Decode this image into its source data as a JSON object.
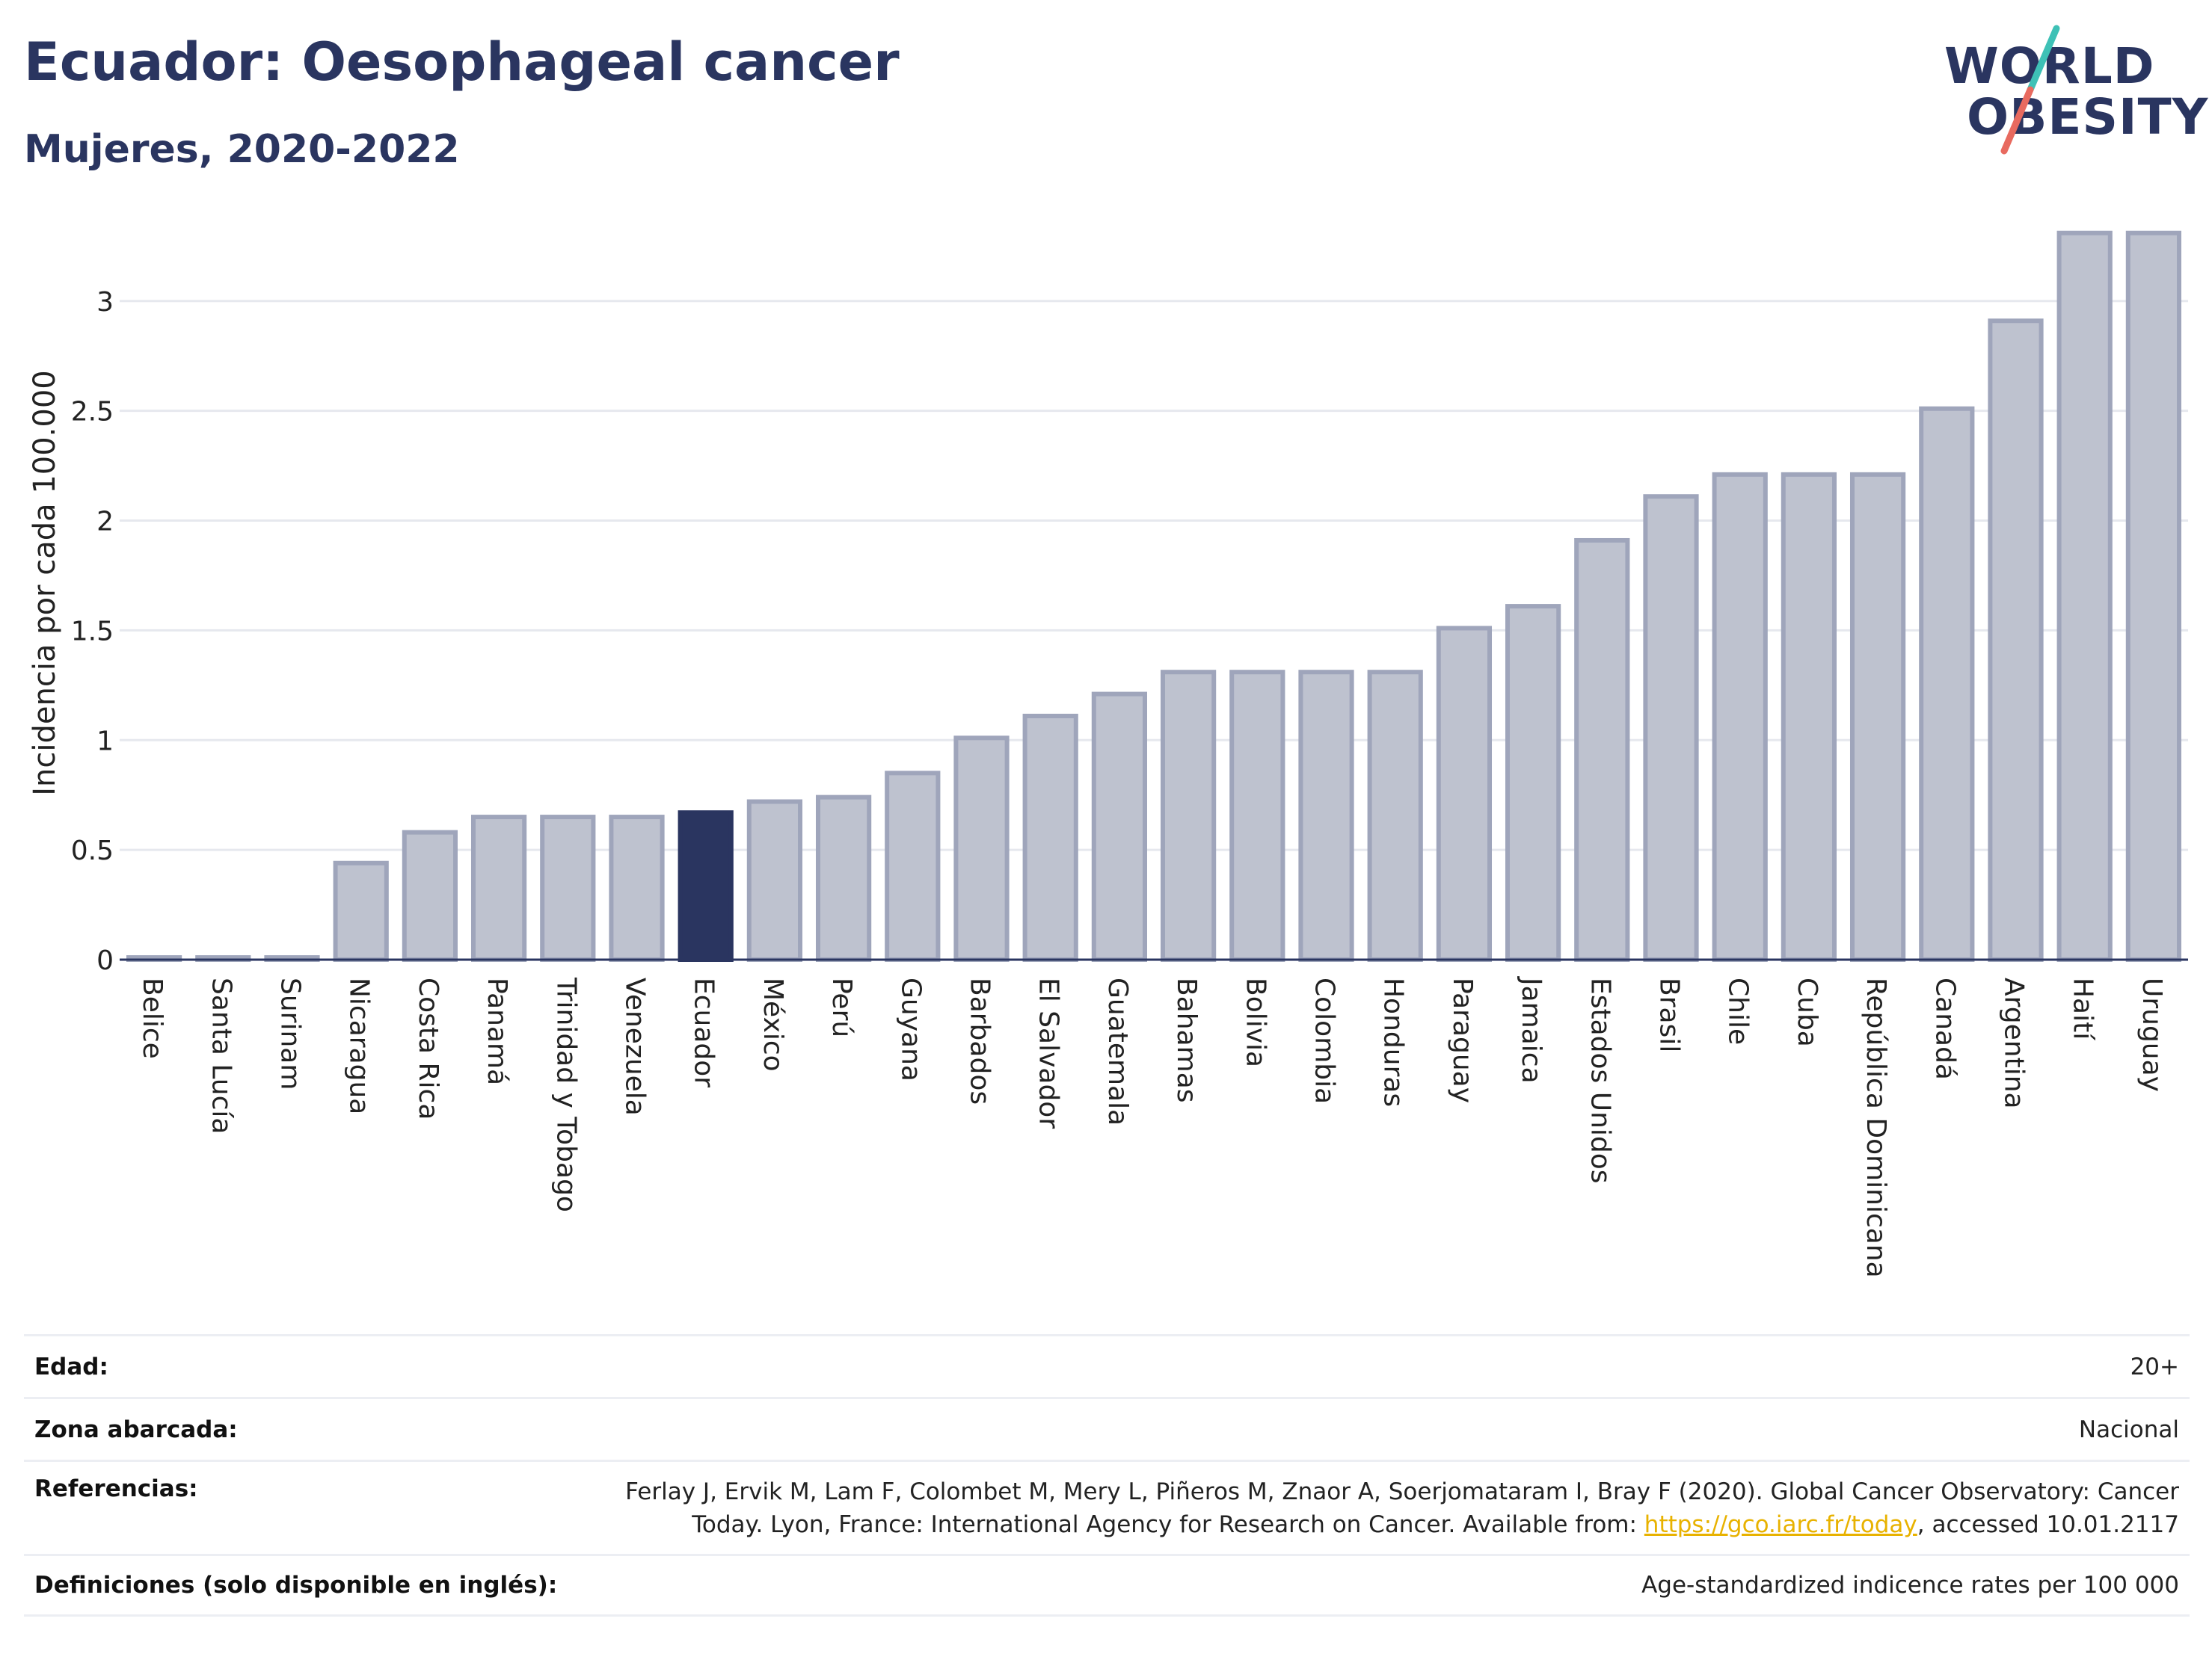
{
  "title": "Ecuador: Oesophageal cancer",
  "subtitle": "Mujeres, 2020-2022",
  "logo": {
    "line1": "WORLD",
    "line2": "OBESITY",
    "colors": {
      "text": "#2a3560",
      "slash_teal": "#3ec1b6",
      "slash_red": "#e86a5f"
    }
  },
  "chart_data": {
    "type": "bar",
    "title": "Ecuador: Oesophageal cancer",
    "subtitle": "Mujeres, 2020-2022",
    "ylabel": "Incidencia por cada 100.000",
    "xlabel": "",
    "ylim": [
      0,
      3.35
    ],
    "yticks": [
      0,
      0.5,
      1,
      1.5,
      2,
      2.5,
      3
    ],
    "ytick_labels": [
      "0",
      "0.5",
      "1",
      "1.5",
      "2",
      "2.5",
      "3"
    ],
    "grid": true,
    "highlight": "Ecuador",
    "colors": {
      "bar": "#bec2cf",
      "bar_edge": "#9fa5bb",
      "highlight": "#2a3560"
    },
    "categories": [
      "Belice",
      "Santa Lucía",
      "Surinam",
      "Nicaragua",
      "Costa Rica",
      "Panamá",
      "Trinidad y Tobago",
      "Venezuela",
      "Ecuador",
      "México",
      "Perú",
      "Guyana",
      "Barbados",
      "El Salvador",
      "Guatemala",
      "Bahamas",
      "Bolivia",
      "Colombia",
      "Honduras",
      "Paraguay",
      "Jamaica",
      "Estados Unidos",
      "Brasil",
      "Chile",
      "Cuba",
      "República Dominicana",
      "Canadá",
      "Argentina",
      "Haití",
      "Uruguay"
    ],
    "values": [
      0.01,
      0.01,
      0.01,
      0.44,
      0.58,
      0.65,
      0.65,
      0.65,
      0.67,
      0.72,
      0.74,
      0.85,
      1.01,
      1.11,
      1.21,
      1.31,
      1.31,
      1.31,
      1.31,
      1.51,
      1.61,
      1.91,
      2.11,
      2.21,
      2.21,
      2.21,
      2.51,
      2.91,
      3.31,
      3.31
    ]
  },
  "info": {
    "edad_label": "Edad:",
    "edad_value": "20+",
    "zona_label": "Zona abarcada:",
    "zona_value": "Nacional",
    "ref_label": "Referencias:",
    "ref_line1": "Ferlay J, Ervik M, Lam F, Colombet M, Mery L, Piñeros M, Znaor A, Soerjomataram I, Bray F (2020). Global Cancer Observatory: Cancer",
    "ref_line2_pre": "Today. Lyon, France: International Agency for Research on Cancer. Available from: ",
    "ref_link": "https://gco.iarc.fr/today",
    "ref_line2_post": ", accessed 10.01.2117",
    "def_label": "Definiciones (solo disponible en inglés):",
    "def_value": "Age-standardized indicence rates per 100 000"
  }
}
